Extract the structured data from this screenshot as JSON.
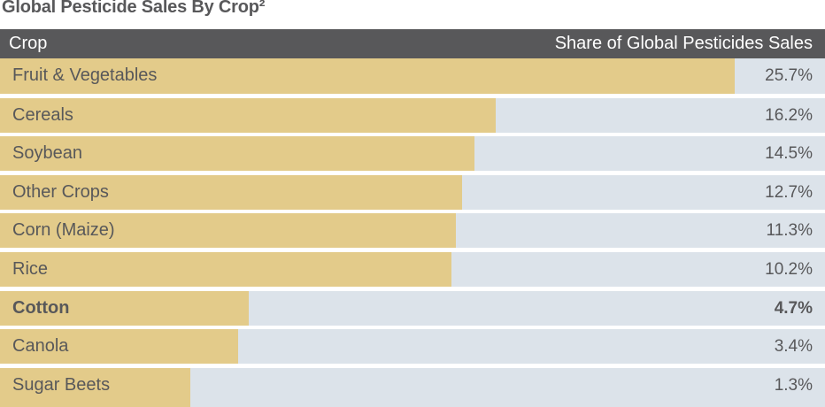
{
  "chart_data": {
    "type": "bar",
    "title": "Global Pesticide Sales By Crop²",
    "columns": [
      "Crop",
      "Share of Global Pesticides Sales"
    ],
    "unit": "%",
    "categories": [
      "Fruit & Vegetables",
      "Cereals",
      "Soybean",
      "Other Crops",
      "Corn (Maize)",
      "Rice",
      "Cotton",
      "Canola",
      "Sugar Beets"
    ],
    "values": [
      25.7,
      16.2,
      14.5,
      12.7,
      11.3,
      10.2,
      4.7,
      3.4,
      1.3
    ],
    "labels": [
      "25.7%",
      "16.2%",
      "14.5%",
      "12.7%",
      "11.3%",
      "10.2%",
      "4.7%",
      "3.4%",
      "1.3%"
    ],
    "highlighted": "Cotton",
    "colors": {
      "bar": "#e3cb8a",
      "track": "#dce3ea",
      "header": "#58585a",
      "text": "#58585a"
    }
  }
}
